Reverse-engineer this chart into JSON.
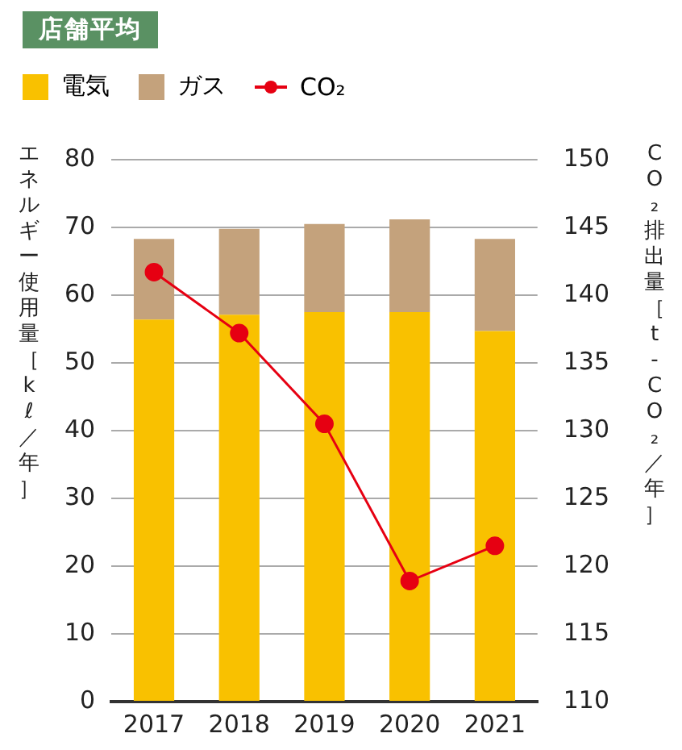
{
  "chart_data": {
    "type": "bar",
    "title": "店舗平均",
    "ylabel": "エネルギー使用量［kℓ／年］",
    "y2label": "CO₂排出量［t-CO₂／年］",
    "categories": [
      "2017",
      "2018",
      "2019",
      "2020",
      "2021"
    ],
    "series": [
      {
        "name": "電気",
        "color": "#f9c100",
        "values": [
          56.4,
          57.1,
          57.5,
          57.5,
          54.7
        ]
      },
      {
        "name": "ガス",
        "color": "#c4a27c",
        "values": [
          11.9,
          12.7,
          13.0,
          13.7,
          13.6
        ]
      },
      {
        "name": "CO₂",
        "type": "line",
        "axis": "y2",
        "color": "#e60012",
        "marker": "circle",
        "values": [
          141.7,
          137.2,
          130.5,
          118.9,
          121.5
        ]
      }
    ],
    "stacked": true,
    "ylim": [
      0,
      80
    ],
    "yticks": [
      0,
      10,
      20,
      30,
      40,
      50,
      60,
      70,
      80
    ],
    "y2lim": [
      110,
      150
    ],
    "y2ticks": [
      110,
      115,
      120,
      125,
      130,
      135,
      140,
      145,
      150
    ],
    "grid": "y",
    "legend": "top left"
  }
}
